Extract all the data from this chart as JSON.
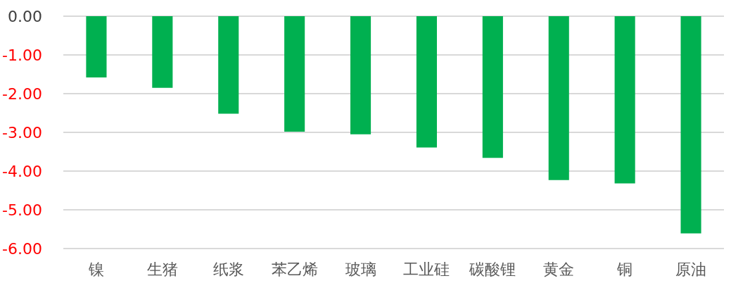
{
  "chart_data": {
    "type": "bar",
    "categories": [
      "镍",
      "生猪",
      "纸浆",
      "苯乙烯",
      "玻璃",
      "工业硅",
      "碳酸锂",
      "黄金",
      "铜",
      "原油"
    ],
    "values": [
      -1.58,
      -1.85,
      -2.52,
      -2.98,
      -3.05,
      -3.39,
      -3.66,
      -4.23,
      -4.32,
      -5.61
    ],
    "color": "#00b050",
    "ylim": [
      -6,
      0
    ],
    "yticks": [
      {
        "value": 0,
        "label": "0.00"
      },
      {
        "value": -1,
        "label": "-1.00"
      },
      {
        "value": -2,
        "label": "-2.00"
      },
      {
        "value": -3,
        "label": "-3.00"
      },
      {
        "value": -4,
        "label": "-4.00"
      },
      {
        "value": -5,
        "label": "-5.00"
      },
      {
        "value": -6,
        "label": "-6.00"
      }
    ],
    "grid": true
  }
}
